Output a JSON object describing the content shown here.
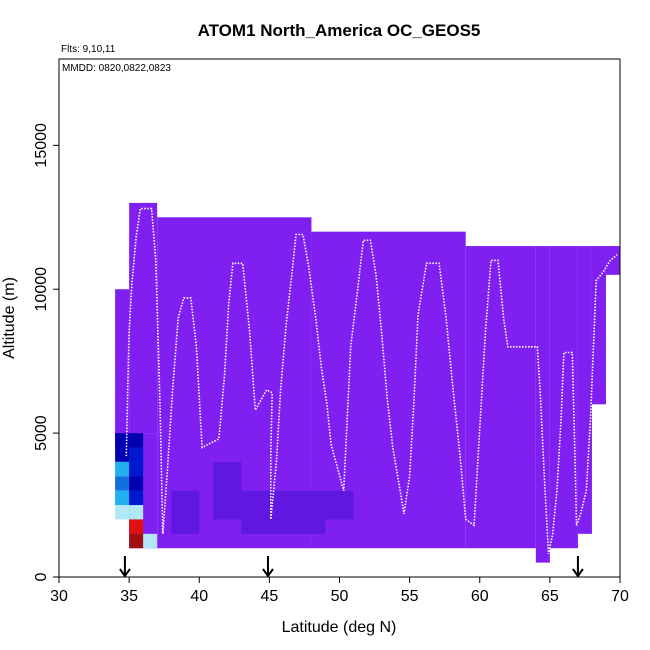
{
  "chart_data": {
    "type": "heatmap",
    "title": "ATOM1 North_America OC_GEOS5",
    "annotations": [
      "Flts: 9,10,11",
      "MMDD: 0820,0822,0823"
    ],
    "xlabel": "Latitude (deg N)",
    "ylabel": "Altitude (m)",
    "xlim": [
      30,
      70
    ],
    "ylim": [
      0,
      18000
    ],
    "x_ticks": [
      30,
      35,
      40,
      45,
      50,
      55,
      60,
      65,
      70
    ],
    "y_ticks": [
      0,
      5000,
      10000,
      15000
    ],
    "grid": false,
    "legend": "none",
    "colors": {
      "background_field": "#8020f0",
      "dark_blue": "#0000b0",
      "blue": "#0018d0",
      "mid_blue": "#1070e0",
      "light_blue": "#20b0f0",
      "pale_blue": "#b0e8f8",
      "red": "#e01010",
      "dark_red": "#a01010",
      "indigo": "#6018e0",
      "track": "#ffffff"
    },
    "cells": [
      {
        "lon0": 34.0,
        "lon1": 35.0,
        "alt0": 4500,
        "alt1": 10000,
        "color": "background_field"
      },
      {
        "lon0": 35.0,
        "lon1": 37.0,
        "alt0": 5000,
        "alt1": 13000,
        "color": "background_field"
      },
      {
        "lon0": 37.0,
        "lon1": 48.0,
        "alt0": 1000,
        "alt1": 12500,
        "color": "background_field"
      },
      {
        "lon0": 48.0,
        "lon1": 59.0,
        "alt0": 1000,
        "alt1": 12000,
        "color": "background_field"
      },
      {
        "lon0": 59.0,
        "lon1": 64.0,
        "alt0": 1000,
        "alt1": 11500,
        "color": "background_field"
      },
      {
        "lon0": 64.0,
        "lon1": 65.0,
        "alt0": 500,
        "alt1": 11500,
        "color": "background_field"
      },
      {
        "lon0": 65.0,
        "lon1": 67.0,
        "alt0": 1000,
        "alt1": 11500,
        "color": "background_field"
      },
      {
        "lon0": 67.0,
        "lon1": 68.0,
        "alt0": 1500,
        "alt1": 11500,
        "color": "background_field"
      },
      {
        "lon0": 68.0,
        "lon1": 69.0,
        "alt0": 6000,
        "alt1": 11500,
        "color": "background_field"
      },
      {
        "lon0": 69.0,
        "lon1": 70.0,
        "alt0": 10500,
        "alt1": 11500,
        "color": "background_field"
      },
      {
        "lon0": 35.0,
        "lon1": 37.0,
        "alt0": 1000,
        "alt1": 5000,
        "color": "background_field"
      },
      {
        "lon0": 34.0,
        "lon1": 35.0,
        "alt0": 4000,
        "alt1": 5000,
        "color": "dark_blue"
      },
      {
        "lon0": 35.0,
        "lon1": 36.0,
        "alt0": 4500,
        "alt1": 5000,
        "color": "dark_blue"
      },
      {
        "lon0": 34.0,
        "lon1": 35.0,
        "alt0": 3500,
        "alt1": 4000,
        "color": "light_blue"
      },
      {
        "lon0": 35.0,
        "lon1": 36.0,
        "alt0": 3500,
        "alt1": 4500,
        "color": "blue"
      },
      {
        "lon0": 34.0,
        "lon1": 35.0,
        "alt0": 3000,
        "alt1": 3500,
        "color": "mid_blue"
      },
      {
        "lon0": 35.0,
        "lon1": 36.0,
        "alt0": 3000,
        "alt1": 3500,
        "color": "dark_blue"
      },
      {
        "lon0": 34.0,
        "lon1": 35.0,
        "alt0": 2500,
        "alt1": 3000,
        "color": "light_blue"
      },
      {
        "lon0": 35.0,
        "lon1": 36.0,
        "alt0": 2500,
        "alt1": 3000,
        "color": "blue"
      },
      {
        "lon0": 34.0,
        "lon1": 35.0,
        "alt0": 2000,
        "alt1": 2500,
        "color": "pale_blue"
      },
      {
        "lon0": 35.0,
        "lon1": 36.0,
        "alt0": 2000,
        "alt1": 2500,
        "color": "pale_blue"
      },
      {
        "lon0": 35.0,
        "lon1": 36.0,
        "alt0": 1500,
        "alt1": 2000,
        "color": "red"
      },
      {
        "lon0": 35.0,
        "lon1": 36.0,
        "alt0": 1000,
        "alt1": 1500,
        "color": "dark_red"
      },
      {
        "lon0": 36.0,
        "lon1": 37.0,
        "alt0": 1000,
        "alt1": 1500,
        "color": "pale_blue"
      },
      {
        "lon0": 38.0,
        "lon1": 40.0,
        "alt0": 1500,
        "alt1": 3000,
        "color": "indigo"
      },
      {
        "lon0": 41.0,
        "lon1": 43.0,
        "alt0": 2000,
        "alt1": 4000,
        "color": "indigo"
      },
      {
        "lon0": 43.0,
        "lon1": 49.0,
        "alt0": 1500,
        "alt1": 3000,
        "color": "indigo"
      },
      {
        "lon0": 49.0,
        "lon1": 51.0,
        "alt0": 2000,
        "alt1": 3000,
        "color": "indigo"
      }
    ],
    "flight_track": [
      [
        34.8,
        4200
      ],
      [
        34.9,
        6500
      ],
      [
        35.0,
        8500
      ],
      [
        35.2,
        10200
      ],
      [
        35.5,
        11800
      ],
      [
        35.8,
        12800
      ],
      [
        36.2,
        12800
      ],
      [
        36.6,
        12800
      ],
      [
        36.9,
        11000
      ],
      [
        37.2,
        6000
      ],
      [
        37.4,
        1500
      ],
      [
        37.7,
        3500
      ],
      [
        38.1,
        6500
      ],
      [
        38.5,
        9000
      ],
      [
        38.9,
        9700
      ],
      [
        39.4,
        9700
      ],
      [
        39.8,
        8000
      ],
      [
        40.2,
        4500
      ],
      [
        41.4,
        4800
      ],
      [
        41.8,
        7000
      ],
      [
        42.1,
        9500
      ],
      [
        42.4,
        10900
      ],
      [
        43.1,
        10900
      ],
      [
        43.6,
        8500
      ],
      [
        44.0,
        5800
      ],
      [
        44.8,
        6500
      ],
      [
        45.2,
        6400
      ],
      [
        45.1,
        4300
      ],
      [
        45.1,
        2000
      ],
      [
        45.5,
        4000
      ],
      [
        45.8,
        6500
      ],
      [
        46.2,
        8800
      ],
      [
        46.6,
        10500
      ],
      [
        46.9,
        11900
      ],
      [
        47.4,
        11900
      ],
      [
        47.8,
        10800
      ],
      [
        48.3,
        9000
      ],
      [
        48.7,
        7300
      ],
      [
        49.1,
        6000
      ],
      [
        49.4,
        4600
      ],
      [
        50.3,
        3000
      ],
      [
        50.5,
        5000
      ],
      [
        50.8,
        8000
      ],
      [
        51.3,
        10000
      ],
      [
        51.7,
        11700
      ],
      [
        52.2,
        11700
      ],
      [
        52.6,
        10500
      ],
      [
        53.0,
        8500
      ],
      [
        53.4,
        6200
      ],
      [
        53.8,
        4500
      ],
      [
        54.6,
        2200
      ],
      [
        55.0,
        3500
      ],
      [
        55.3,
        6000
      ],
      [
        55.6,
        9100
      ],
      [
        56.2,
        10900
      ],
      [
        57.1,
        10900
      ],
      [
        57.6,
        9000
      ],
      [
        58.1,
        6500
      ],
      [
        58.6,
        4200
      ],
      [
        59.0,
        2000
      ],
      [
        59.6,
        1800
      ],
      [
        59.8,
        3500
      ],
      [
        60.1,
        6000
      ],
      [
        60.4,
        8500
      ],
      [
        60.8,
        11000
      ],
      [
        61.3,
        11000
      ],
      [
        61.7,
        9000
      ],
      [
        62.0,
        8000
      ],
      [
        64.1,
        8000
      ],
      [
        64.3,
        6500
      ],
      [
        64.6,
        3500
      ],
      [
        64.9,
        800
      ],
      [
        65.2,
        1500
      ],
      [
        65.5,
        3000
      ],
      [
        65.8,
        5500
      ],
      [
        66.0,
        7800
      ],
      [
        66.6,
        7800
      ],
      [
        66.8,
        4000
      ],
      [
        66.9,
        1800
      ],
      [
        67.2,
        2200
      ],
      [
        67.6,
        3000
      ],
      [
        67.9,
        5500
      ],
      [
        68.3,
        10300
      ],
      [
        68.8,
        10600
      ],
      [
        69.3,
        11000
      ],
      [
        69.8,
        11200
      ]
    ],
    "arrows_at_latitude": [
      34.7,
      44.9,
      67.0
    ]
  }
}
